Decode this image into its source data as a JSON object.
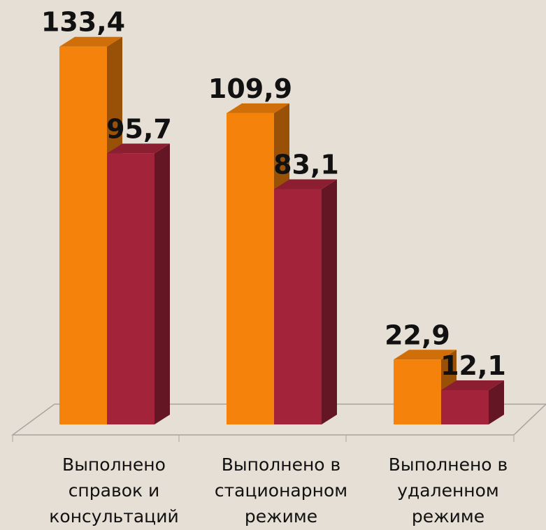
{
  "chart_data": {
    "type": "bar3d",
    "categories": [
      "Выполнено справок и консультаций",
      "Выполнено в стационарном режиме",
      "Выполнено в удаленном режиме"
    ],
    "series": [
      {
        "color": "#f5820a",
        "values": [
          133.4,
          109.9,
          22.9
        ],
        "value_labels": [
          "133,4",
          "109,9",
          "22,9"
        ]
      },
      {
        "color": "#a3243a",
        "values": [
          95.7,
          83.1,
          12.1
        ],
        "value_labels": [
          "95,7",
          "83,1",
          "12,1"
        ]
      }
    ],
    "ylim": [
      0,
      140
    ]
  }
}
